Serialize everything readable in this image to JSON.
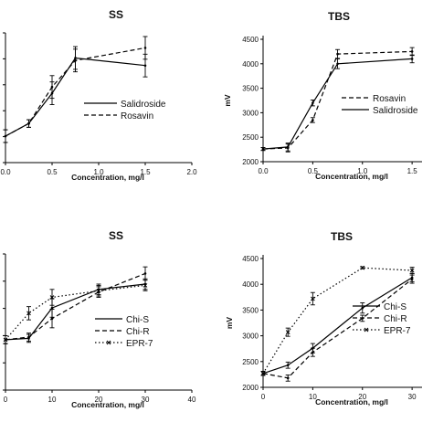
{
  "chart_data": [
    {
      "type": "line",
      "title": "SS",
      "xlabel": "Concentration, mg/l",
      "ylabel": "",
      "xlim": [
        0,
        2.0
      ],
      "xticks": [
        "0.0",
        "0.5",
        "1.0",
        "1.5",
        "2.0"
      ],
      "ylim": [
        0,
        1
      ],
      "yticks": [],
      "legend": "center-right",
      "x": [
        0,
        0.25,
        0.5,
        0.75,
        1.5
      ],
      "series": [
        {
          "name": "Salidroside",
          "style": "solid",
          "values": [
            0.21,
            0.31,
            0.55,
            0.83,
            0.77
          ],
          "errors": [
            0.05,
            0.03,
            0.09,
            0.09,
            0.09
          ]
        },
        {
          "name": "Rosavin",
          "style": "dashed",
          "values": [
            0.21,
            0.31,
            0.6,
            0.81,
            0.91
          ],
          "errors": [
            0.05,
            0.03,
            0.09,
            0.09,
            0.09
          ]
        }
      ]
    },
    {
      "type": "line",
      "title": "TBS",
      "xlabel": "Concentration, mg/l",
      "ylabel": "mV",
      "xlim": [
        0,
        1.6
      ],
      "xticks": [
        "0.0",
        "0.5",
        "1.0",
        "1.5"
      ],
      "ylim": [
        2000,
        4500
      ],
      "yticks": [
        "2000",
        "2500",
        "3000",
        "3500",
        "4000",
        "4500"
      ],
      "legend": "center-right",
      "x": [
        0,
        0.25,
        0.5,
        0.75,
        1.5
      ],
      "series": [
        {
          "name": "Rosavin",
          "style": "dashed",
          "values": [
            2260,
            2280,
            2850,
            4200,
            4250
          ],
          "errors": [
            30,
            80,
            50,
            90,
            80
          ]
        },
        {
          "name": "Salidroside",
          "style": "solid",
          "values": [
            2260,
            2300,
            3200,
            4000,
            4100
          ],
          "errors": [
            30,
            80,
            60,
            100,
            80
          ]
        }
      ]
    },
    {
      "type": "line",
      "title": "SS",
      "xlabel": "Concentration, mg/l",
      "ylabel": "",
      "xlim": [
        0,
        40
      ],
      "xticks": [
        "0",
        "10",
        "20",
        "30",
        "40"
      ],
      "ylim": [
        0,
        1
      ],
      "yticks": [],
      "legend": "bottom-right",
      "x": [
        0,
        5,
        10,
        20,
        30
      ],
      "series": [
        {
          "name": "Chi-S",
          "style": "solid",
          "values": [
            0.38,
            0.39,
            0.62,
            0.76,
            0.8
          ],
          "errors": [
            0.03,
            0.03,
            0.07,
            0.04,
            0.04
          ]
        },
        {
          "name": "Chi-R",
          "style": "dashed",
          "values": [
            0.38,
            0.4,
            0.54,
            0.74,
            0.88
          ],
          "errors": [
            0.03,
            0.03,
            0.07,
            0.04,
            0.05
          ]
        },
        {
          "name": "EPR-7",
          "style": "dotted",
          "values": [
            0.38,
            0.58,
            0.7,
            0.75,
            0.79
          ],
          "errors": [
            0.03,
            0.05,
            0.06,
            0.04,
            0.04
          ]
        }
      ]
    },
    {
      "type": "line",
      "title": "TBS",
      "xlabel": "Concentration, mg/l",
      "ylabel": "mV",
      "xlim": [
        0,
        32
      ],
      "xticks": [
        "0",
        "10",
        "20",
        "30"
      ],
      "ylim": [
        2000,
        4500
      ],
      "yticks": [
        "2000",
        "2500",
        "3000",
        "3500",
        "4000",
        "4500"
      ],
      "legend": "bottom-right",
      "x": [
        0,
        5,
        10,
        20,
        30
      ],
      "series": [
        {
          "name": "Chi-S",
          "style": "solid",
          "values": [
            2270,
            2430,
            2760,
            3540,
            4130
          ],
          "errors": [
            40,
            60,
            90,
            100,
            80
          ]
        },
        {
          "name": "Chi-R",
          "style": "dashed",
          "values": [
            2270,
            2180,
            2680,
            3340,
            4100
          ],
          "errors": [
            40,
            60,
            80,
            60,
            80
          ]
        },
        {
          "name": "EPR-7",
          "style": "dotted",
          "values": [
            2270,
            3070,
            3720,
            4320,
            4270
          ],
          "errors": [
            40,
            80,
            120,
            20,
            60
          ]
        }
      ]
    }
  ]
}
